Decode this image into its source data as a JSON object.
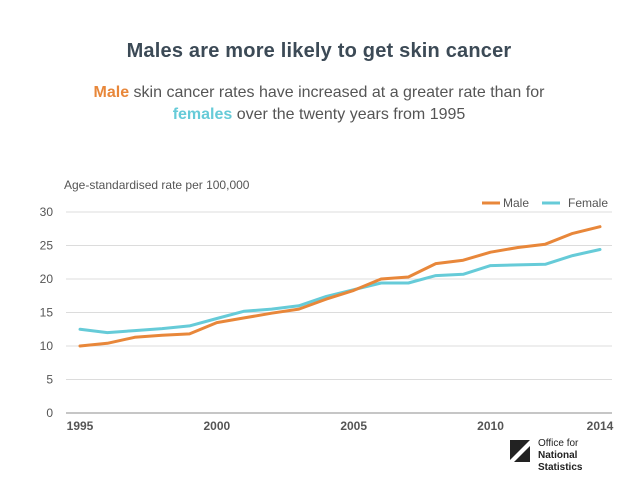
{
  "chart_data": {
    "type": "line",
    "title": "Males are more likely to get skin cancer",
    "subtitle": {
      "male_word": "Male",
      "part1": " skin cancer rates have increased at a greater rate than for",
      "female_word": "females",
      "part2": " over the twenty years from 1995"
    },
    "ylabel": "Age-standardised rate per 100,000",
    "xlabel": "",
    "ylim": [
      0,
      30
    ],
    "yticks": [
      "0",
      "5",
      "10",
      "15",
      "20",
      "25",
      "30"
    ],
    "xlim": [
      1995,
      2014
    ],
    "xticks": [
      "1995",
      "2000",
      "2005",
      "2010",
      "2014"
    ],
    "legend_position": "top-right",
    "grid": true,
    "x": [
      1995,
      1996,
      1997,
      1998,
      1999,
      2000,
      2001,
      2002,
      2003,
      2004,
      2005,
      2006,
      2007,
      2008,
      2009,
      2010,
      2011,
      2012,
      2013,
      2014
    ],
    "series": [
      {
        "name": "Male",
        "color": "#e8873a",
        "values": [
          10.0,
          10.4,
          11.3,
          11.6,
          11.8,
          13.5,
          14.2,
          14.9,
          15.5,
          17.0,
          18.3,
          20.0,
          20.3,
          22.3,
          22.8,
          24.0,
          24.7,
          25.2,
          26.8,
          27.8
        ]
      },
      {
        "name": "Female",
        "color": "#66cbd8",
        "values": [
          12.5,
          12.0,
          12.3,
          12.6,
          13.0,
          14.1,
          15.2,
          15.5,
          16.0,
          17.4,
          18.4,
          19.4,
          19.4,
          20.5,
          20.7,
          22.0,
          22.1,
          22.2,
          23.5,
          24.4
        ]
      }
    ]
  },
  "branding": {
    "logo_line1": "Office for",
    "logo_line2": "National Statistics"
  }
}
